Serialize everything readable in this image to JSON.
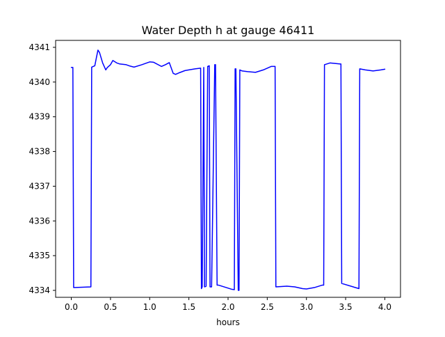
{
  "chart_data": {
    "type": "line",
    "title": "Water Depth h at gauge 46411",
    "xlabel": "hours",
    "ylabel": "",
    "xlim": [
      -0.2,
      4.2
    ],
    "ylim": [
      4333.8,
      4341.2
    ],
    "xticks": [
      0.0,
      0.5,
      1.0,
      1.5,
      2.0,
      2.5,
      3.0,
      3.5,
      4.0
    ],
    "xtick_labels": [
      "0.0",
      "0.5",
      "1.0",
      "1.5",
      "2.0",
      "2.5",
      "3.0",
      "3.5",
      "4.0"
    ],
    "yticks": [
      4334,
      4335,
      4336,
      4337,
      4338,
      4339,
      4340,
      4341
    ],
    "ytick_labels": [
      "4334",
      "4335",
      "4336",
      "4337",
      "4338",
      "4339",
      "4340",
      "4341"
    ],
    "grid": false,
    "legend": false,
    "series": [
      {
        "color": "#0000ff",
        "x": [
          0.0,
          0.02,
          0.03,
          0.25,
          0.26,
          0.3,
          0.32,
          0.34,
          0.36,
          0.4,
          0.44,
          0.46,
          0.5,
          0.53,
          0.58,
          0.62,
          0.7,
          0.75,
          0.8,
          0.9,
          1.0,
          1.05,
          1.15,
          1.2,
          1.25,
          1.3,
          1.33,
          1.38,
          1.45,
          1.5,
          1.58,
          1.65,
          1.66,
          1.67,
          1.69,
          1.7,
          1.72,
          1.74,
          1.76,
          1.77,
          1.79,
          1.83,
          1.84,
          1.86,
          1.87,
          1.88,
          2.05,
          2.08,
          2.09,
          2.1,
          2.13,
          2.14,
          2.15,
          2.18,
          2.25,
          2.35,
          2.45,
          2.55,
          2.6,
          2.61,
          2.75,
          2.85,
          2.95,
          3.0,
          3.1,
          3.2,
          3.22,
          3.23,
          3.3,
          3.43,
          3.44,
          3.45,
          3.67,
          3.68,
          3.75,
          3.85,
          3.95,
          4.0
        ],
        "y": [
          4340.42,
          4340.42,
          4334.08,
          4334.1,
          4340.43,
          4340.47,
          4340.7,
          4340.92,
          4340.85,
          4340.55,
          4340.35,
          4340.42,
          4340.5,
          4340.62,
          4340.55,
          4340.52,
          4340.5,
          4340.46,
          4340.43,
          4340.5,
          4340.58,
          4340.57,
          4340.45,
          4340.5,
          4340.56,
          4340.25,
          4340.22,
          4340.27,
          4340.33,
          4340.35,
          4340.38,
          4340.4,
          4334.05,
          4334.1,
          4340.42,
          4334.1,
          4334.12,
          4340.45,
          4340.47,
          4334.1,
          4334.1,
          4340.5,
          4340.5,
          4334.15,
          4334.15,
          4334.15,
          4334.03,
          4334.02,
          4340.38,
          4340.38,
          4334.0,
          4334.0,
          4340.35,
          4340.32,
          4340.3,
          4340.28,
          4340.35,
          4340.45,
          4340.45,
          4334.1,
          4334.12,
          4334.1,
          4334.05,
          4334.04,
          4334.08,
          4334.15,
          4334.15,
          4340.5,
          4340.55,
          4340.52,
          4340.52,
          4334.2,
          4334.05,
          4340.38,
          4340.35,
          4340.32,
          4340.35,
          4340.37
        ]
      }
    ]
  }
}
